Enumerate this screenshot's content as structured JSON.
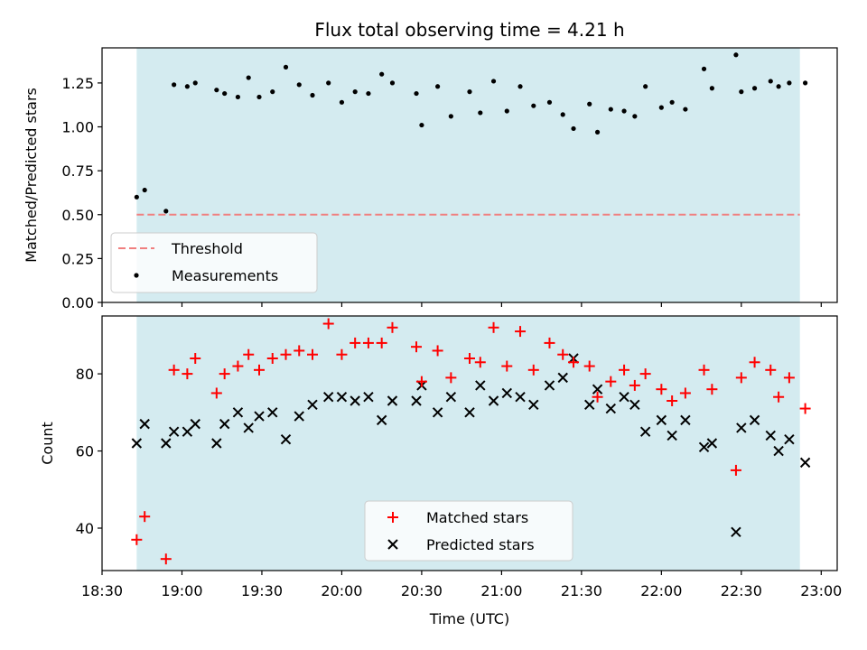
{
  "chart_data": [
    {
      "type": "scatter",
      "title": "Flux total observing time = 4.21 h",
      "xlabel": "",
      "ylabel": "Matched/Predicted stars",
      "ylim": [
        0,
        1.45
      ],
      "yticks": [
        "0.00",
        "0.25",
        "0.50",
        "0.75",
        "1.00",
        "1.25"
      ],
      "ytick_values": [
        0,
        0.25,
        0.5,
        0.75,
        1.0,
        1.25
      ],
      "shaded_span": [
        "18:43",
        "22:52"
      ],
      "colors": {
        "shade": "#d4ebf0",
        "threshold": "#f07f7f",
        "measurements": "#000000"
      },
      "legend_position": "lower-left",
      "threshold": {
        "name": "Threshold",
        "y": 0.5
      },
      "series": [
        {
          "name": "Measurements",
          "points": [
            [
              "18:43",
              0.6
            ],
            [
              "18:46",
              0.64
            ],
            [
              "18:54",
              0.52
            ],
            [
              "18:57",
              1.24
            ],
            [
              "19:02",
              1.23
            ],
            [
              "19:05",
              1.25
            ],
            [
              "19:13",
              1.21
            ],
            [
              "19:16",
              1.19
            ],
            [
              "19:21",
              1.17
            ],
            [
              "19:25",
              1.28
            ],
            [
              "19:29",
              1.17
            ],
            [
              "19:34",
              1.2
            ],
            [
              "19:39",
              1.34
            ],
            [
              "19:44",
              1.24
            ],
            [
              "19:49",
              1.18
            ],
            [
              "19:55",
              1.25
            ],
            [
              "20:00",
              1.14
            ],
            [
              "20:05",
              1.2
            ],
            [
              "20:10",
              1.19
            ],
            [
              "20:15",
              1.3
            ],
            [
              "20:19",
              1.25
            ],
            [
              "20:28",
              1.19
            ],
            [
              "20:30",
              1.01
            ],
            [
              "20:36",
              1.23
            ],
            [
              "20:41",
              1.06
            ],
            [
              "20:48",
              1.2
            ],
            [
              "20:52",
              1.08
            ],
            [
              "20:57",
              1.26
            ],
            [
              "21:02",
              1.09
            ],
            [
              "21:07",
              1.23
            ],
            [
              "21:12",
              1.12
            ],
            [
              "21:18",
              1.14
            ],
            [
              "21:23",
              1.07
            ],
            [
              "21:27",
              0.99
            ],
            [
              "21:33",
              1.13
            ],
            [
              "21:36",
              0.97
            ],
            [
              "21:41",
              1.1
            ],
            [
              "21:46",
              1.09
            ],
            [
              "21:50",
              1.06
            ],
            [
              "21:54",
              1.23
            ],
            [
              "22:00",
              1.11
            ],
            [
              "22:04",
              1.14
            ],
            [
              "22:09",
              1.1
            ],
            [
              "22:16",
              1.33
            ],
            [
              "22:19",
              1.22
            ],
            [
              "22:28",
              1.41
            ],
            [
              "22:30",
              1.2
            ],
            [
              "22:35",
              1.22
            ],
            [
              "22:41",
              1.26
            ],
            [
              "22:44",
              1.23
            ],
            [
              "22:48",
              1.25
            ],
            [
              "22:54",
              1.25
            ]
          ]
        }
      ]
    },
    {
      "type": "scatter",
      "xlabel": "Time (UTC)",
      "ylabel": "Count",
      "ylim": [
        29,
        95
      ],
      "yticks": [
        "40",
        "60",
        "80"
      ],
      "ytick_values": [
        40,
        60,
        80
      ],
      "xticks": [
        "18:30",
        "19:00",
        "19:30",
        "20:00",
        "20:30",
        "21:00",
        "21:30",
        "22:00",
        "22:30",
        "23:00"
      ],
      "xlim": [
        "18:30",
        "23:06"
      ],
      "shaded_span": [
        "18:43",
        "22:52"
      ],
      "colors": {
        "shade": "#d4ebf0",
        "matched": "#ff0000",
        "predicted": "#000000"
      },
      "legend_position": "lower-center",
      "series": [
        {
          "name": "Matched stars",
          "marker": "plus",
          "points": [
            [
              "18:43",
              37
            ],
            [
              "18:46",
              43
            ],
            [
              "18:54",
              32
            ],
            [
              "18:57",
              81
            ],
            [
              "19:02",
              80
            ],
            [
              "19:05",
              84
            ],
            [
              "19:13",
              75
            ],
            [
              "19:16",
              80
            ],
            [
              "19:21",
              82
            ],
            [
              "19:25",
              85
            ],
            [
              "19:29",
              81
            ],
            [
              "19:34",
              84
            ],
            [
              "19:39",
              85
            ],
            [
              "19:44",
              86
            ],
            [
              "19:49",
              85
            ],
            [
              "19:55",
              93
            ],
            [
              "20:00",
              85
            ],
            [
              "20:05",
              88
            ],
            [
              "20:10",
              88
            ],
            [
              "20:15",
              88
            ],
            [
              "20:19",
              92
            ],
            [
              "20:28",
              87
            ],
            [
              "20:30",
              78
            ],
            [
              "20:36",
              86
            ],
            [
              "20:41",
              79
            ],
            [
              "20:48",
              84
            ],
            [
              "20:52",
              83
            ],
            [
              "20:57",
              92
            ],
            [
              "21:02",
              82
            ],
            [
              "21:07",
              91
            ],
            [
              "21:12",
              81
            ],
            [
              "21:18",
              88
            ],
            [
              "21:23",
              85
            ],
            [
              "21:27",
              83
            ],
            [
              "21:33",
              82
            ],
            [
              "21:36",
              74
            ],
            [
              "21:41",
              78
            ],
            [
              "21:46",
              81
            ],
            [
              "21:50",
              77
            ],
            [
              "21:54",
              80
            ],
            [
              "22:00",
              76
            ],
            [
              "22:04",
              73
            ],
            [
              "22:09",
              75
            ],
            [
              "22:16",
              81
            ],
            [
              "22:19",
              76
            ],
            [
              "22:28",
              55
            ],
            [
              "22:30",
              79
            ],
            [
              "22:35",
              83
            ],
            [
              "22:41",
              81
            ],
            [
              "22:44",
              74
            ],
            [
              "22:48",
              79
            ],
            [
              "22:54",
              71
            ]
          ]
        },
        {
          "name": "Predicted stars",
          "marker": "x",
          "points": [
            [
              "18:43",
              62
            ],
            [
              "18:46",
              67
            ],
            [
              "18:54",
              62
            ],
            [
              "18:57",
              65
            ],
            [
              "19:02",
              65
            ],
            [
              "19:05",
              67
            ],
            [
              "19:13",
              62
            ],
            [
              "19:16",
              67
            ],
            [
              "19:21",
              70
            ],
            [
              "19:25",
              66
            ],
            [
              "19:29",
              69
            ],
            [
              "19:34",
              70
            ],
            [
              "19:39",
              63
            ],
            [
              "19:44",
              69
            ],
            [
              "19:49",
              72
            ],
            [
              "19:55",
              74
            ],
            [
              "20:00",
              74
            ],
            [
              "20:05",
              73
            ],
            [
              "20:10",
              74
            ],
            [
              "20:15",
              68
            ],
            [
              "20:19",
              73
            ],
            [
              "20:28",
              73
            ],
            [
              "20:30",
              77
            ],
            [
              "20:36",
              70
            ],
            [
              "20:41",
              74
            ],
            [
              "20:48",
              70
            ],
            [
              "20:52",
              77
            ],
            [
              "20:57",
              73
            ],
            [
              "21:02",
              75
            ],
            [
              "21:07",
              74
            ],
            [
              "21:12",
              72
            ],
            [
              "21:18",
              77
            ],
            [
              "21:23",
              79
            ],
            [
              "21:27",
              84
            ],
            [
              "21:33",
              72
            ],
            [
              "21:36",
              76
            ],
            [
              "21:41",
              71
            ],
            [
              "21:46",
              74
            ],
            [
              "21:50",
              72
            ],
            [
              "21:54",
              65
            ],
            [
              "22:00",
              68
            ],
            [
              "22:04",
              64
            ],
            [
              "22:09",
              68
            ],
            [
              "22:16",
              61
            ],
            [
              "22:19",
              62
            ],
            [
              "22:28",
              39
            ],
            [
              "22:30",
              66
            ],
            [
              "22:35",
              68
            ],
            [
              "22:41",
              64
            ],
            [
              "22:44",
              60
            ],
            [
              "22:48",
              63
            ],
            [
              "22:54",
              57
            ]
          ]
        }
      ]
    }
  ]
}
